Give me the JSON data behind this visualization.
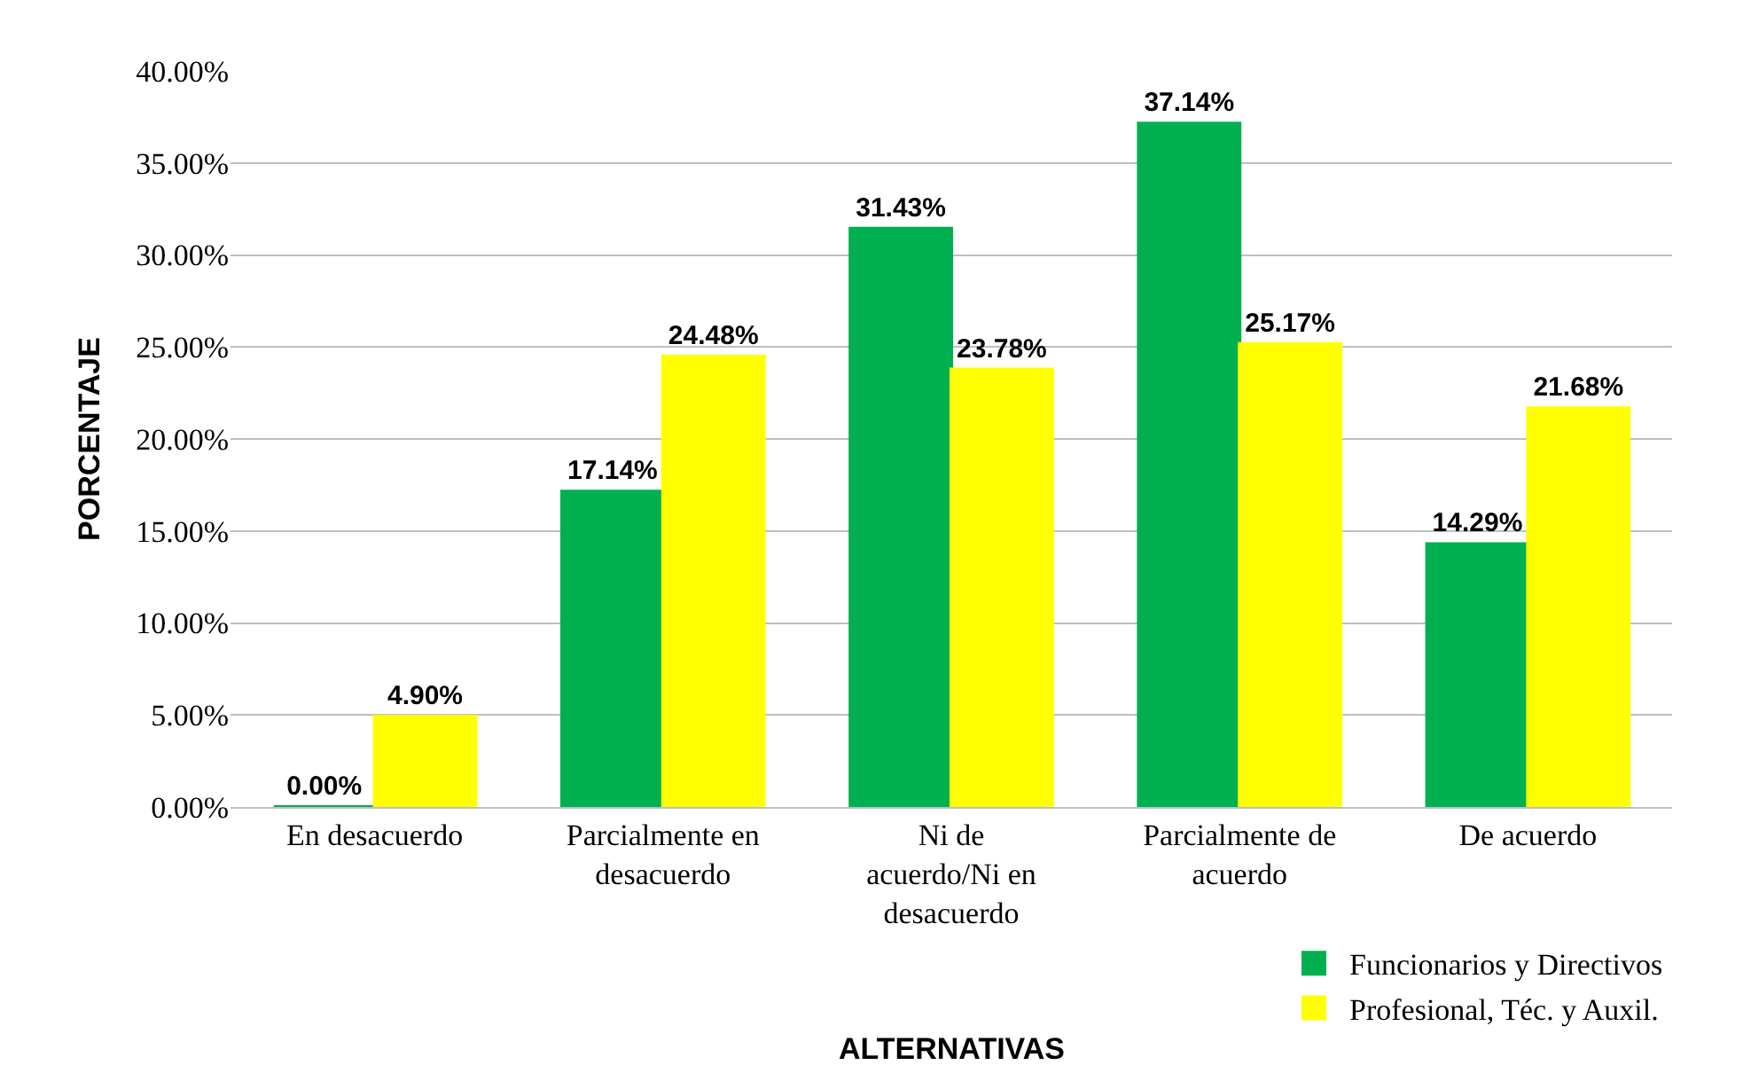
{
  "chart_data": {
    "type": "bar",
    "xlabel": "ALTERNATIVAS",
    "ylabel": "PORCENTAJE",
    "categories": [
      "En desacuerdo",
      "Parcialmente en desacuerdo",
      "Ni de acuerdo/Ni en desacuerdo",
      "Parcialmente de acuerdo",
      "De acuerdo"
    ],
    "series": [
      {
        "name": "Funcionarios y Directivos",
        "color": "#00b050",
        "values": [
          0.0,
          17.14,
          31.43,
          37.14,
          14.29
        ],
        "value_labels": [
          "0.00%",
          "17.14%",
          "31.43%",
          "37.14%",
          "14.29%"
        ]
      },
      {
        "name": "Profesional, Téc. y Auxil.",
        "color": "#ffff00",
        "values": [
          4.9,
          24.48,
          23.78,
          25.17,
          21.68
        ],
        "value_labels": [
          "4.90%",
          "24.48%",
          "23.78%",
          "25.17%",
          "21.68%"
        ]
      }
    ],
    "ylim": [
      0,
      40
    ],
    "yticks": [
      {
        "value": 0,
        "label": "0.00%"
      },
      {
        "value": 5,
        "label": "5.00%"
      },
      {
        "value": 10,
        "label": "10.00%"
      },
      {
        "value": 15,
        "label": "15.00%"
      },
      {
        "value": 20,
        "label": "20.00%"
      },
      {
        "value": 25,
        "label": "25.00%"
      },
      {
        "value": 30,
        "label": "30.00%"
      },
      {
        "value": 35,
        "label": "35.00%"
      },
      {
        "value": 40,
        "label": "40.00%"
      }
    ],
    "grid": "y",
    "legend": "bottom right"
  }
}
